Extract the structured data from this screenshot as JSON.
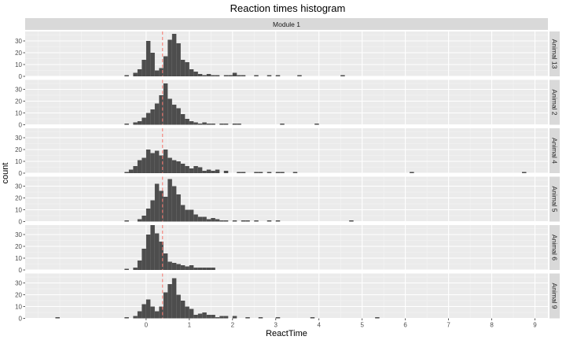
{
  "chart_data": {
    "type": "bar",
    "title": "Reaction times histogram",
    "xlabel": "ReactTime",
    "ylabel": "count",
    "column_strip": "Module 1",
    "xlim": [
      -2.8,
      9.3
    ],
    "ylim": [
      0,
      38
    ],
    "x_ticks": [
      0,
      1,
      2,
      3,
      4,
      5,
      6,
      7,
      8,
      9
    ],
    "y_ticks": [
      0,
      10,
      20,
      30
    ],
    "bin_width": 0.1,
    "reference_line": {
      "x": 0.38,
      "color": "#f8766d",
      "style": "dashed"
    },
    "grid": true,
    "bar_color": "#4d4d4d",
    "panel_background": "#ebebeb",
    "strip_background": "#d9d9d9",
    "panels": [
      {
        "label": "Animal 13",
        "bins": [
          [
            -0.5,
            1
          ],
          [
            -0.3,
            3
          ],
          [
            -0.2,
            6
          ],
          [
            -0.1,
            14
          ],
          [
            0.0,
            30
          ],
          [
            0.1,
            20
          ],
          [
            0.2,
            5
          ],
          [
            0.3,
            7
          ],
          [
            0.4,
            17
          ],
          [
            0.5,
            31
          ],
          [
            0.6,
            36
          ],
          [
            0.7,
            28
          ],
          [
            0.8,
            14
          ],
          [
            0.9,
            12
          ],
          [
            1.0,
            6
          ],
          [
            1.1,
            4
          ],
          [
            1.2,
            2
          ],
          [
            1.3,
            1
          ],
          [
            1.4,
            2
          ],
          [
            1.5,
            1
          ],
          [
            1.6,
            1
          ],
          [
            1.8,
            1
          ],
          [
            1.9,
            1
          ],
          [
            2.0,
            3
          ],
          [
            2.1,
            1
          ],
          [
            2.2,
            1
          ],
          [
            2.5,
            1
          ],
          [
            2.8,
            1
          ],
          [
            3.0,
            1
          ],
          [
            3.5,
            1
          ],
          [
            4.5,
            1
          ]
        ]
      },
      {
        "label": "Animal 2",
        "bins": [
          [
            -0.5,
            1
          ],
          [
            -0.3,
            2
          ],
          [
            -0.2,
            3
          ],
          [
            -0.1,
            6
          ],
          [
            0.0,
            10
          ],
          [
            0.1,
            13
          ],
          [
            0.2,
            18
          ],
          [
            0.3,
            25
          ],
          [
            0.4,
            35
          ],
          [
            0.5,
            22
          ],
          [
            0.6,
            17
          ],
          [
            0.7,
            14
          ],
          [
            0.8,
            9
          ],
          [
            0.9,
            5
          ],
          [
            1.0,
            3
          ],
          [
            1.1,
            2
          ],
          [
            1.2,
            1
          ],
          [
            1.3,
            2
          ],
          [
            1.4,
            1
          ],
          [
            1.5,
            1
          ],
          [
            1.7,
            1
          ],
          [
            1.8,
            1
          ],
          [
            2.0,
            1
          ],
          [
            2.1,
            1
          ],
          [
            3.1,
            1
          ],
          [
            3.9,
            1
          ]
        ]
      },
      {
        "label": "Animal 4",
        "bins": [
          [
            -0.5,
            1
          ],
          [
            -0.4,
            3
          ],
          [
            -0.3,
            6
          ],
          [
            -0.2,
            11
          ],
          [
            -0.1,
            13
          ],
          [
            0.0,
            20
          ],
          [
            0.1,
            17
          ],
          [
            0.2,
            19
          ],
          [
            0.3,
            15
          ],
          [
            0.4,
            20
          ],
          [
            0.5,
            13
          ],
          [
            0.6,
            11
          ],
          [
            0.7,
            10
          ],
          [
            0.8,
            8
          ],
          [
            0.9,
            6
          ],
          [
            1.0,
            4
          ],
          [
            1.1,
            6
          ],
          [
            1.2,
            5
          ],
          [
            1.3,
            2
          ],
          [
            1.4,
            3
          ],
          [
            1.5,
            2
          ],
          [
            1.6,
            3
          ],
          [
            1.8,
            2
          ],
          [
            2.1,
            1
          ],
          [
            2.2,
            1
          ],
          [
            2.5,
            1
          ],
          [
            2.6,
            1
          ],
          [
            2.8,
            1
          ],
          [
            3.0,
            1
          ],
          [
            3.1,
            1
          ],
          [
            3.4,
            1
          ],
          [
            6.1,
            1
          ],
          [
            8.7,
            1
          ]
        ]
      },
      {
        "label": "Animal 5",
        "bins": [
          [
            -0.5,
            1
          ],
          [
            -0.2,
            2
          ],
          [
            -0.1,
            5
          ],
          [
            0.0,
            11
          ],
          [
            0.1,
            18
          ],
          [
            0.2,
            32
          ],
          [
            0.3,
            26
          ],
          [
            0.4,
            21
          ],
          [
            0.5,
            36
          ],
          [
            0.6,
            30
          ],
          [
            0.7,
            23
          ],
          [
            0.8,
            14
          ],
          [
            0.9,
            10
          ],
          [
            1.0,
            10
          ],
          [
            1.1,
            6
          ],
          [
            1.2,
            4
          ],
          [
            1.3,
            4
          ],
          [
            1.4,
            2
          ],
          [
            1.5,
            3
          ],
          [
            1.6,
            2
          ],
          [
            1.7,
            1
          ],
          [
            1.8,
            1
          ],
          [
            2.0,
            1
          ],
          [
            2.2,
            1
          ],
          [
            2.3,
            1
          ],
          [
            2.5,
            1
          ],
          [
            2.8,
            1
          ],
          [
            3.0,
            1
          ],
          [
            4.7,
            1
          ]
        ]
      },
      {
        "label": "Animal 6",
        "bins": [
          [
            -0.5,
            1
          ],
          [
            -0.3,
            2
          ],
          [
            -0.2,
            8
          ],
          [
            -0.1,
            18
          ],
          [
            0.0,
            30
          ],
          [
            0.1,
            38
          ],
          [
            0.2,
            31
          ],
          [
            0.3,
            24
          ],
          [
            0.4,
            14
          ],
          [
            0.5,
            7
          ],
          [
            0.6,
            6
          ],
          [
            0.7,
            5
          ],
          [
            0.8,
            4
          ],
          [
            0.9,
            3
          ],
          [
            1.0,
            4
          ],
          [
            1.1,
            2
          ],
          [
            1.2,
            2
          ],
          [
            1.3,
            2
          ],
          [
            1.4,
            2
          ],
          [
            1.5,
            2
          ]
        ]
      },
      {
        "label": "Animal 9",
        "bins": [
          [
            -2.1,
            1
          ],
          [
            -0.5,
            1
          ],
          [
            -0.3,
            2
          ],
          [
            -0.2,
            6
          ],
          [
            -0.1,
            12
          ],
          [
            0.0,
            16
          ],
          [
            0.1,
            10
          ],
          [
            0.2,
            6
          ],
          [
            0.3,
            10
          ],
          [
            0.4,
            22
          ],
          [
            0.5,
            29
          ],
          [
            0.6,
            34
          ],
          [
            0.7,
            20
          ],
          [
            0.8,
            15
          ],
          [
            0.9,
            10
          ],
          [
            1.0,
            8
          ],
          [
            1.1,
            3
          ],
          [
            1.2,
            4
          ],
          [
            1.3,
            5
          ],
          [
            1.4,
            3
          ],
          [
            1.5,
            3
          ],
          [
            1.6,
            1
          ],
          [
            1.7,
            2
          ],
          [
            1.8,
            2
          ],
          [
            2.0,
            2
          ],
          [
            2.3,
            1
          ],
          [
            2.6,
            1
          ],
          [
            3.0,
            1
          ],
          [
            3.8,
            1
          ],
          [
            5.3,
            1
          ]
        ]
      }
    ]
  }
}
